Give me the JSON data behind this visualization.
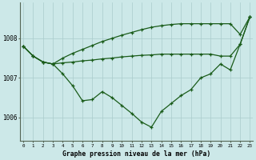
{
  "bg_color": "#cce8e8",
  "grid_color": "#aacccc",
  "line_color": "#1a5c1a",
  "title": "Graphe pression niveau de la mer (hPa)",
  "xlabel_ticks": [
    0,
    1,
    2,
    3,
    4,
    5,
    6,
    7,
    8,
    9,
    10,
    11,
    12,
    13,
    14,
    15,
    16,
    17,
    18,
    19,
    20,
    21,
    22,
    23
  ],
  "yticks": [
    1006,
    1007,
    1008
  ],
  "ylim": [
    1005.4,
    1008.9
  ],
  "xlim": [
    -0.3,
    23.3
  ],
  "y_main": [
    1007.8,
    1007.55,
    1007.4,
    1007.35,
    1007.1,
    1006.8,
    1006.42,
    1006.45,
    1006.65,
    1006.5,
    1006.3,
    1006.1,
    1005.88,
    1005.75,
    1006.15,
    1006.35,
    1006.55,
    1006.7,
    1007.0,
    1007.1,
    1007.35,
    1007.2,
    1007.85,
    1008.55
  ],
  "y_upper": [
    1007.8,
    1007.55,
    1007.4,
    1007.35,
    1007.38,
    1007.4,
    1007.43,
    1007.45,
    1007.48,
    1007.5,
    1007.53,
    1007.55,
    1007.57,
    1007.58,
    1007.6,
    1007.6,
    1007.6,
    1007.6,
    1007.6,
    1007.6,
    1007.55,
    1007.55,
    1007.85,
    1008.55
  ],
  "y_top": [
    1007.8,
    1007.55,
    1007.4,
    1007.35,
    1007.5,
    1007.62,
    1007.72,
    1007.82,
    1007.92,
    1008.0,
    1008.08,
    1008.15,
    1008.22,
    1008.28,
    1008.32,
    1008.35,
    1008.37,
    1008.37,
    1008.37,
    1008.37,
    1008.37,
    1008.37,
    1008.1,
    1008.55
  ],
  "marker": "+",
  "markersize": 3.5,
  "linewidth": 0.9
}
